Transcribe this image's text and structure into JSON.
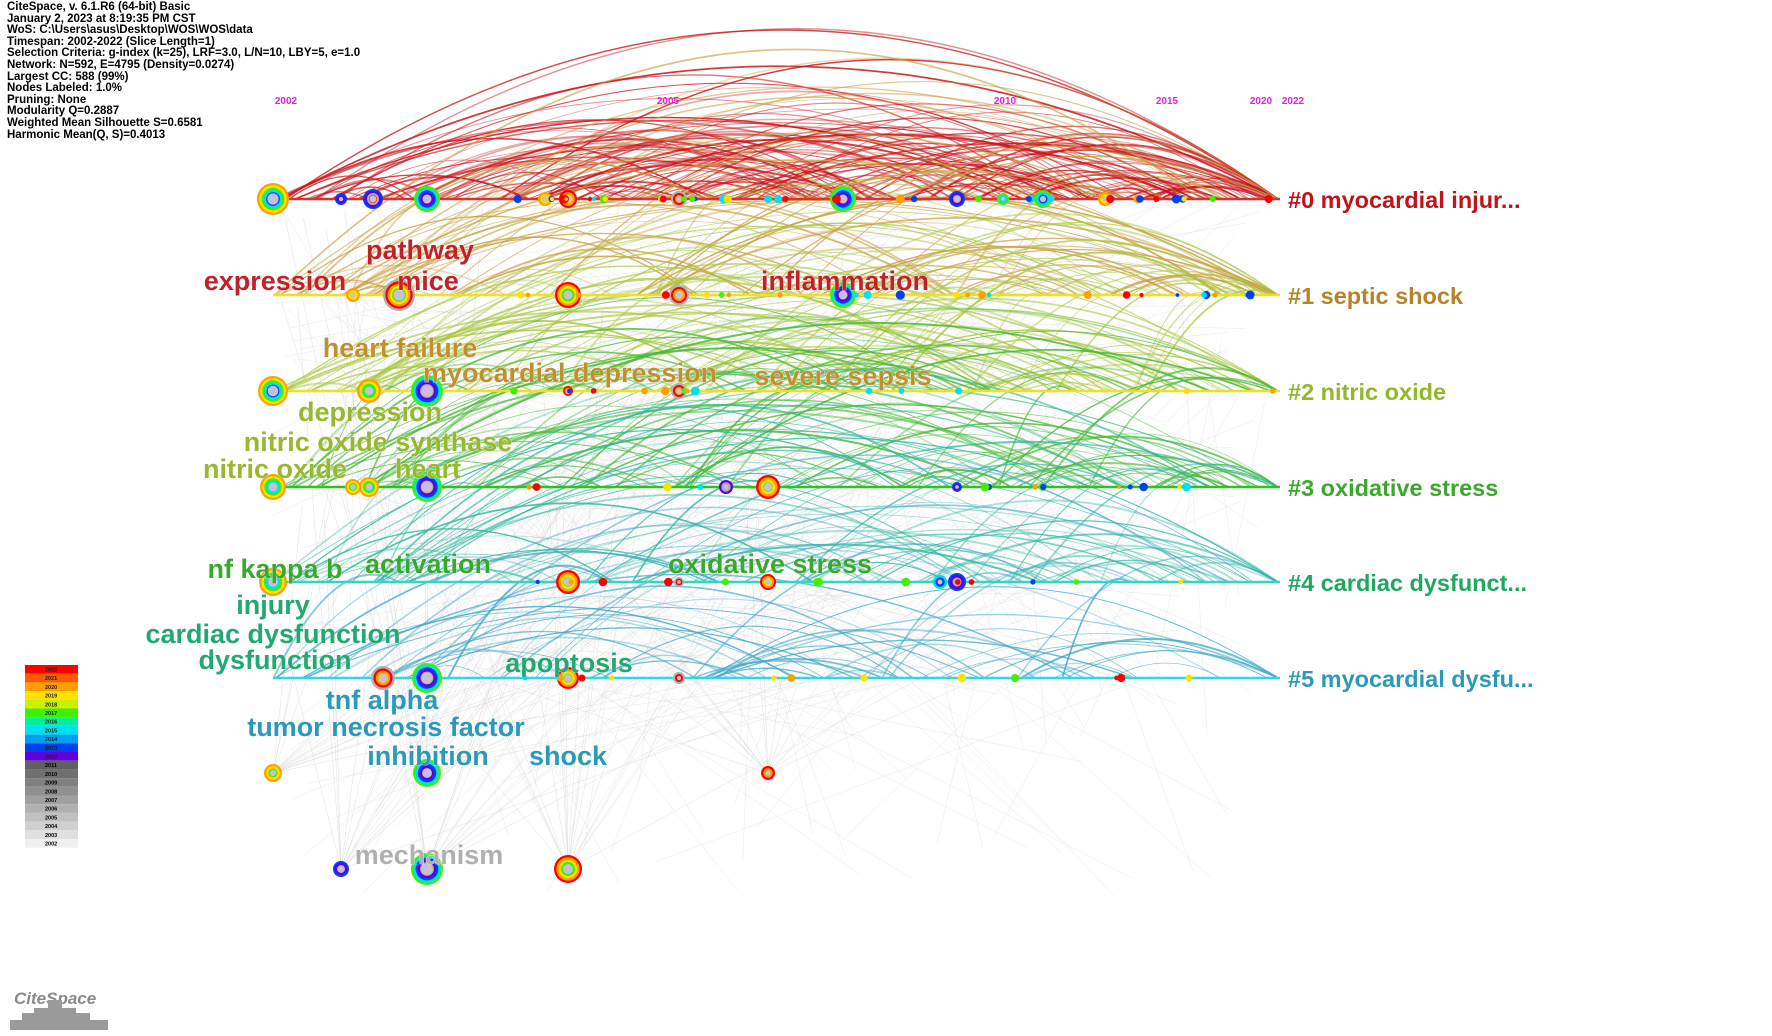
{
  "meta": {
    "lines": [
      "CiteSpace, v. 6.1.R6 (64-bit) Basic",
      "January 2, 2023 at 8:19:35 PM CST",
      "WoS: C:\\Users\\asus\\Desktop\\WOS\\WOS\\data",
      "Timespan: 2002-2022 (Slice Length=1)",
      "Selection Criteria: g-index (k=25), LRF=3.0, L/N=10, LBY=5, e=1.0",
      "Network: N=592, E=4795 (Density=0.0274)",
      "Largest CC: 588 (99%)",
      "Nodes Labeled: 1.0%",
      "Pruning: None",
      "Modularity Q=0.2887",
      "Weighted Mean Silhouette S=0.6581",
      "Harmonic Mean(Q, S)=0.4013"
    ]
  },
  "timeline_years": [
    "2002",
    "2005",
    "2010",
    "2015",
    "2020",
    "2022"
  ],
  "clusters": [
    {
      "label": "#0 myocardial injur...",
      "color": "#c0141a",
      "line": "#e0302a"
    },
    {
      "label": "#1 septic shock",
      "color": "#b8822a",
      "line": "#f0e020"
    },
    {
      "label": "#2 nitric oxide",
      "color": "#8fb82a",
      "line": "#f0e020"
    },
    {
      "label": "#3 oxidative stress",
      "color": "#3aa82a",
      "line": "#30c020"
    },
    {
      "label": "#4 cardiac dysfunct...",
      "color": "#1fa860",
      "line": "#30d8c0"
    },
    {
      "label": "#5 myocardial dysfu...",
      "color": "#2a9ab8",
      "line": "#30d8e0"
    }
  ],
  "keywords": [
    {
      "text": "expression",
      "color": "#c0222a"
    },
    {
      "text": "pathway",
      "color": "#c0222a"
    },
    {
      "text": "mice",
      "color": "#c0222a"
    },
    {
      "text": "inflammation",
      "color": "#c0222a"
    },
    {
      "text": "heart failure",
      "color": "#c09030"
    },
    {
      "text": "myocardial depression",
      "color": "#c09030"
    },
    {
      "text": "severe sepsis",
      "color": "#c09030"
    },
    {
      "text": "depression",
      "color": "#98b830"
    },
    {
      "text": "nitric oxide synthase",
      "color": "#98b830"
    },
    {
      "text": "nitric oxide",
      "color": "#98b830"
    },
    {
      "text": "heart",
      "color": "#98b830"
    },
    {
      "text": "nf kappa b",
      "color": "#3aa830"
    },
    {
      "text": "activation",
      "color": "#3aa830"
    },
    {
      "text": "oxidative stress",
      "color": "#3aa830"
    },
    {
      "text": "injury",
      "color": "#22a870"
    },
    {
      "text": "cardiac dysfunction",
      "color": "#22a870"
    },
    {
      "text": "dysfunction",
      "color": "#22a870"
    },
    {
      "text": "apoptosis",
      "color": "#22a870"
    },
    {
      "text": "tnf alpha",
      "color": "#2a9ab8"
    },
    {
      "text": "tumor necrosis factor",
      "color": "#2a9ab8"
    },
    {
      "text": "inhibition",
      "color": "#2a9ab8"
    },
    {
      "text": "shock",
      "color": "#2a9ab8"
    },
    {
      "text": "mechanism",
      "color": "#b0b0b0"
    }
  ],
  "legend": {
    "years": [
      "2022",
      "2021",
      "2020",
      "2019",
      "2018",
      "2017",
      "2016",
      "2015",
      "2014",
      "2013",
      "2012",
      "2011",
      "2010",
      "2009",
      "2008",
      "2007",
      "2006",
      "2005",
      "2004",
      "2003",
      "2002"
    ],
    "colors": [
      "#ff0000",
      "#ff5a00",
      "#ffa000",
      "#ffe000",
      "#c8f000",
      "#40f000",
      "#00f0a0",
      "#00e0f0",
      "#00a0f0",
      "#0040f0",
      "#6000e0",
      "#606060",
      "#707070",
      "#808080",
      "#909090",
      "#a0a0a0",
      "#b0b0b0",
      "#c0c0c0",
      "#d0d0d0",
      "#e0e0e0",
      "#f0f0f0"
    ]
  },
  "brand": {
    "logo_text": "CiteSpace"
  }
}
